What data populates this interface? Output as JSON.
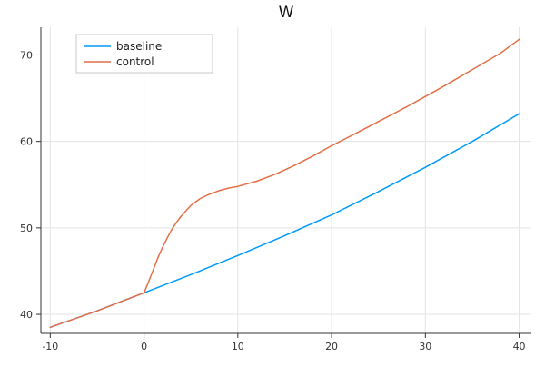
{
  "title": "W",
  "chart_data": {
    "type": "line",
    "title": "W",
    "xlabel": "",
    "ylabel": "",
    "xlim": [
      -11,
      41.3
    ],
    "ylim": [
      37.8,
      73.2
    ],
    "xticks": [
      -10,
      0,
      10,
      20,
      30,
      40
    ],
    "yticks": [
      40,
      50,
      60,
      70
    ],
    "grid": true,
    "legend_position": "top-left",
    "background_color": "#ffffff",
    "grid_color": "#e3e3e3",
    "axis_color": "#333333",
    "series": [
      {
        "name": "baseline",
        "color": "#009AFA",
        "x": [
          -10,
          -5,
          0,
          5,
          10,
          15,
          20,
          25,
          30,
          35,
          40
        ],
        "y": [
          38.5,
          40.4,
          42.5,
          44.6,
          46.8,
          49.1,
          51.5,
          54.2,
          57.0,
          60.0,
          63.2
        ]
      },
      {
        "name": "control",
        "color": "#E36F47",
        "x": [
          -10,
          -5,
          0,
          0.5,
          1,
          1.5,
          2,
          2.5,
          3,
          3.5,
          4,
          4.5,
          5,
          6,
          7,
          8,
          9,
          10,
          12,
          14,
          16,
          18,
          20,
          22,
          25,
          28,
          30,
          32,
          35,
          38,
          40
        ],
        "y": [
          38.5,
          40.4,
          42.5,
          43.8,
          45.2,
          46.6,
          47.8,
          48.9,
          49.9,
          50.7,
          51.4,
          52.0,
          52.6,
          53.4,
          53.9,
          54.3,
          54.6,
          54.8,
          55.4,
          56.2,
          57.2,
          58.3,
          59.5,
          60.6,
          62.3,
          64.0,
          65.2,
          66.4,
          68.3,
          70.2,
          71.8
        ]
      }
    ]
  }
}
